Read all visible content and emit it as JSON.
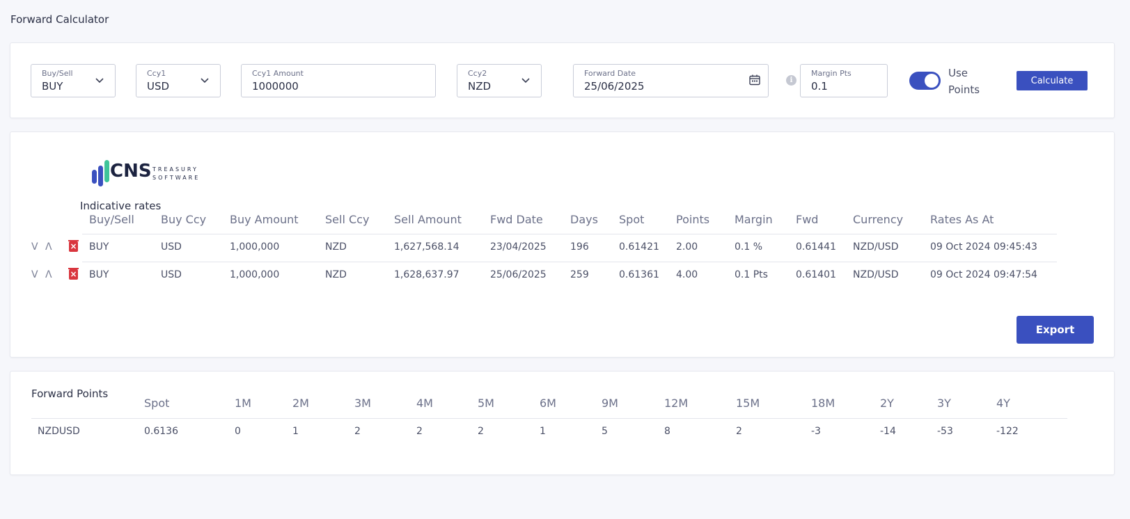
{
  "page_title": "Forward Calculator",
  "form": {
    "buy_sell": {
      "label": "Buy/Sell",
      "value": "BUY"
    },
    "ccy1": {
      "label": "Ccy1",
      "value": "USD"
    },
    "ccy1_amount": {
      "label": "Ccy1 Amount",
      "value": "1000000"
    },
    "ccy2": {
      "label": "Ccy2",
      "value": "NZD"
    },
    "forward_date": {
      "label": "Forward Date",
      "value": "25/06/2025"
    },
    "margin_pts": {
      "label": "Margin Pts",
      "value": "0.1"
    },
    "use_points_label": "Use Points",
    "use_points_on": true,
    "calculate_label": "Calculate"
  },
  "logo": {
    "name": "CNS",
    "line1": "TREASURY",
    "line2": "SOFTWARE"
  },
  "indicative": {
    "title": "Indicative rates",
    "columns": [
      "Buy/Sell",
      "Buy Ccy",
      "Buy Amount",
      "Sell Ccy",
      "Sell Amount",
      "Fwd Date",
      "Days",
      "Spot",
      "Points",
      "Margin",
      "Fwd",
      "Currency",
      "Rates As At"
    ],
    "rows": [
      [
        "BUY",
        "USD",
        "1,000,000",
        "NZD",
        "1,627,568.14",
        "23/04/2025",
        "196",
        "0.61421",
        "2.00",
        "0.1 %",
        "0.61441",
        "NZD/USD",
        "09 Oct 2024 09:45:43"
      ],
      [
        "BUY",
        "USD",
        "1,000,000",
        "NZD",
        "1,628,637.97",
        "25/06/2025",
        "259",
        "0.61361",
        "4.00",
        "0.1 Pts",
        "0.61401",
        "NZD/USD",
        "09 Oct 2024 09:47:54"
      ]
    ],
    "row_down_glyph": "V",
    "row_up_glyph": "Λ",
    "export_label": "Export"
  },
  "forward_points": {
    "title": "Forward Points",
    "columns": [
      "Spot",
      "1M",
      "2M",
      "3M",
      "4M",
      "5M",
      "6M",
      "9M",
      "12M",
      "15M",
      "18M",
      "2Y",
      "3Y",
      "4Y"
    ],
    "rows": [
      {
        "pair": "NZDUSD",
        "values": [
          "0.6136",
          "0",
          "1",
          "2",
          "2",
          "2",
          "1",
          "5",
          "8",
          "2",
          "-3",
          "-14",
          "-53",
          "-122"
        ]
      }
    ]
  },
  "colors": {
    "accent": "#3a50bf",
    "danger": "#d9363e",
    "logo_blue": "#3a50bf",
    "logo_green": "#3fc49a"
  },
  "icons": [
    "chevron-down-icon",
    "calendar-icon",
    "info-icon",
    "trash-icon",
    "move-down-icon",
    "move-up-icon"
  ]
}
